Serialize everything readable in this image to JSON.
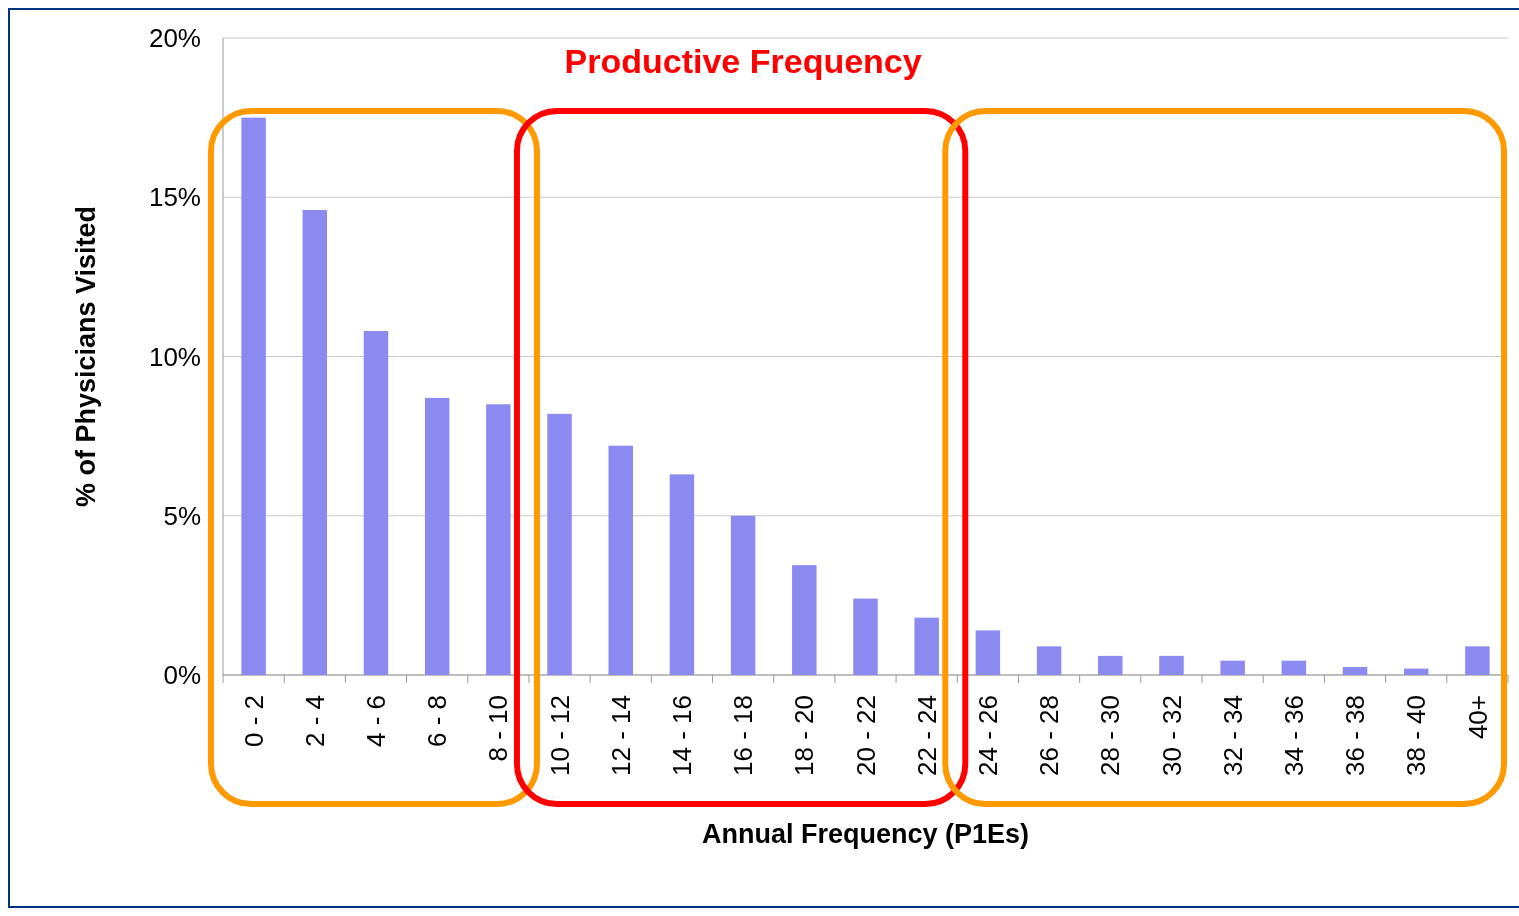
{
  "chart_data": {
    "type": "bar",
    "xlabel": "Annual Frequency (P1Es)",
    "ylabel": "% of Physicians Visited",
    "categories": [
      "0 - 2",
      "2 - 4",
      "4 - 6",
      "6 - 8",
      "8 - 10",
      "10 - 12",
      "12 - 14",
      "14 - 16",
      "16 - 18",
      "18 - 20",
      "20 - 22",
      "22 - 24",
      "24 - 26",
      "26 - 28",
      "28 - 30",
      "30 - 32",
      "32 - 34",
      "34 - 36",
      "36 - 38",
      "38 - 40",
      "40+"
    ],
    "values": [
      17.5,
      14.6,
      10.8,
      8.7,
      8.5,
      8.2,
      7.2,
      6.3,
      5.0,
      3.45,
      2.4,
      1.8,
      1.4,
      0.9,
      0.6,
      0.6,
      0.45,
      0.45,
      0.25,
      0.2,
      0.9
    ],
    "color": "#8a8af0",
    "ylim": [
      0,
      20
    ],
    "yticks": [
      {
        "value": 0,
        "label": "0%"
      },
      {
        "value": 5,
        "label": "5%"
      },
      {
        "value": 10,
        "label": "10%"
      },
      {
        "value": 15,
        "label": "15%"
      },
      {
        "value": 20,
        "label": "20%"
      }
    ],
    "grid": "y",
    "annotations": [
      "Productive Frequency"
    ]
  }
}
